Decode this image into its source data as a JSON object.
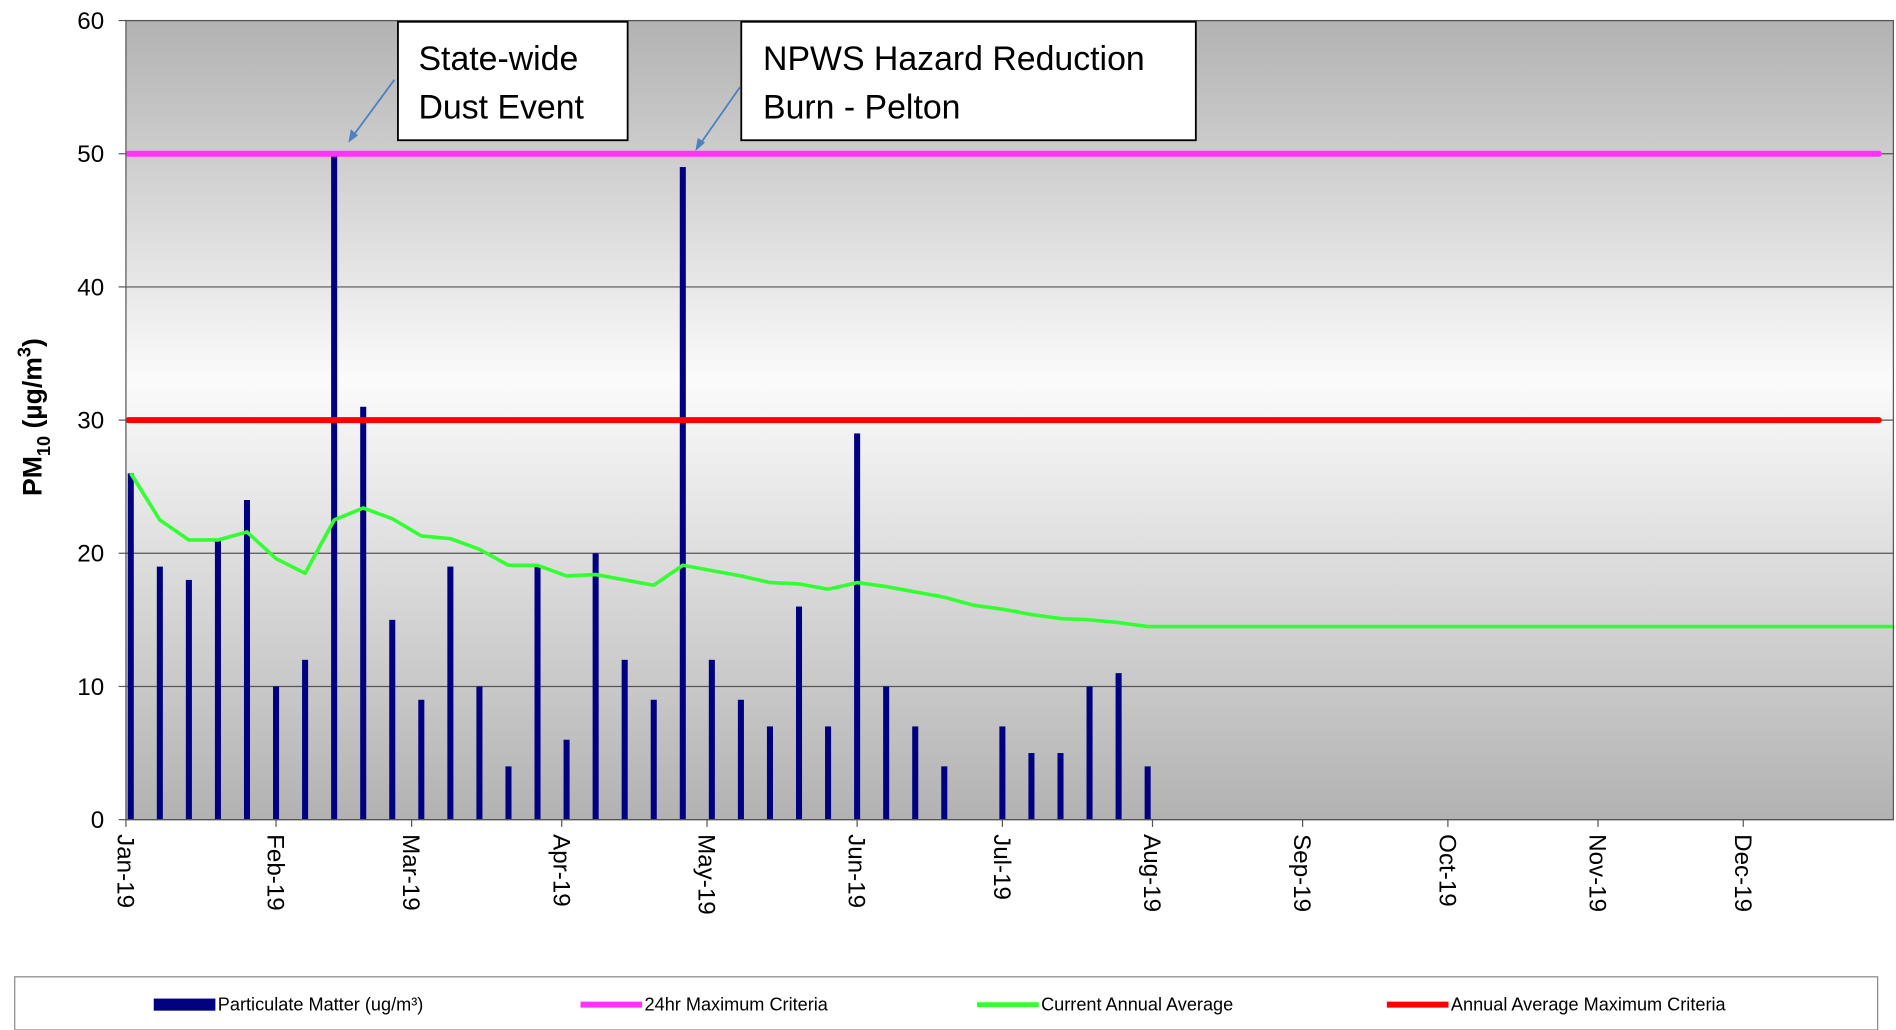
{
  "chart_data": {
    "type": "bar_line",
    "ylabel": [
      "PM",
      "10",
      " (µg/m",
      "3",
      ")"
    ],
    "xlim": [
      0,
      365
    ],
    "xticks": [
      {
        "value": 0,
        "label": "Jan-19"
      },
      {
        "value": 31,
        "label": "Feb-19"
      },
      {
        "value": 59,
        "label": "Mar-19"
      },
      {
        "value": 90,
        "label": "Apr-19"
      },
      {
        "value": 120,
        "label": "May-19"
      },
      {
        "value": 151,
        "label": "Jun-19"
      },
      {
        "value": 181,
        "label": "Jul-19"
      },
      {
        "value": 212,
        "label": "Aug-19"
      },
      {
        "value": 243,
        "label": "Sep-19"
      },
      {
        "value": 273,
        "label": "Oct-19"
      },
      {
        "value": 304,
        "label": "Nov-19"
      },
      {
        "value": 334,
        "label": "Dec-19"
      }
    ],
    "ylim": [
      0,
      60
    ],
    "yticks": [
      0,
      10,
      20,
      30,
      40,
      50,
      60
    ],
    "grid": true,
    "series": [
      {
        "name": "Particulate Matter  (ug/m³)",
        "kind": "bar",
        "color": "#000080",
        "x": [
          1,
          7,
          13,
          19,
          25,
          31,
          37,
          43,
          49,
          55,
          61,
          67,
          73,
          79,
          85,
          91,
          97,
          103,
          109,
          115,
          121,
          127,
          133,
          139,
          145,
          151,
          157,
          163,
          169,
          175,
          181,
          187,
          193,
          199,
          205,
          211
        ],
        "values": [
          26,
          19,
          18,
          21,
          24,
          10,
          12,
          50,
          31,
          15,
          9,
          19,
          10,
          4,
          19,
          6,
          20,
          12,
          9,
          49,
          12,
          9,
          7,
          16,
          7,
          29,
          10,
          7,
          4,
          null,
          7,
          5,
          5,
          10,
          11,
          4
        ]
      },
      {
        "name": "24hr Maximum Criteria",
        "kind": "hline",
        "color": "#ff33ff",
        "value": 50
      },
      {
        "name": "Current Annual Average",
        "kind": "line",
        "color": "#33ff33",
        "x": [
          1,
          7,
          13,
          19,
          25,
          31,
          37,
          43,
          49,
          55,
          61,
          67,
          73,
          79,
          85,
          91,
          97,
          103,
          109,
          115,
          121,
          127,
          133,
          139,
          145,
          151,
          157,
          163,
          169,
          175,
          181,
          187,
          193,
          199,
          205,
          211,
          365
        ],
        "values": [
          26,
          22.5,
          21,
          21,
          21.6,
          19.6,
          18.5,
          22.5,
          23.4,
          22.6,
          21.3,
          21.1,
          20.3,
          19.1,
          19.1,
          18.3,
          18.4,
          18,
          17.6,
          19.1,
          18.7,
          18.3,
          17.8,
          17.7,
          17.3,
          17.8,
          17.5,
          17.1,
          16.7,
          16.1,
          15.8,
          15.4,
          15.1,
          15,
          14.8,
          14.5,
          14.5
        ]
      },
      {
        "name": "Annual Average Maximum Criteria",
        "kind": "hline",
        "color": "#ff0000",
        "value": 30
      }
    ],
    "annotations": [
      {
        "lines": [
          "State-wide",
          "Dust Event"
        ]
      },
      {
        "lines": [
          "NPWS Hazard Reduction",
          "Burn - Pelton"
        ]
      }
    ]
  }
}
